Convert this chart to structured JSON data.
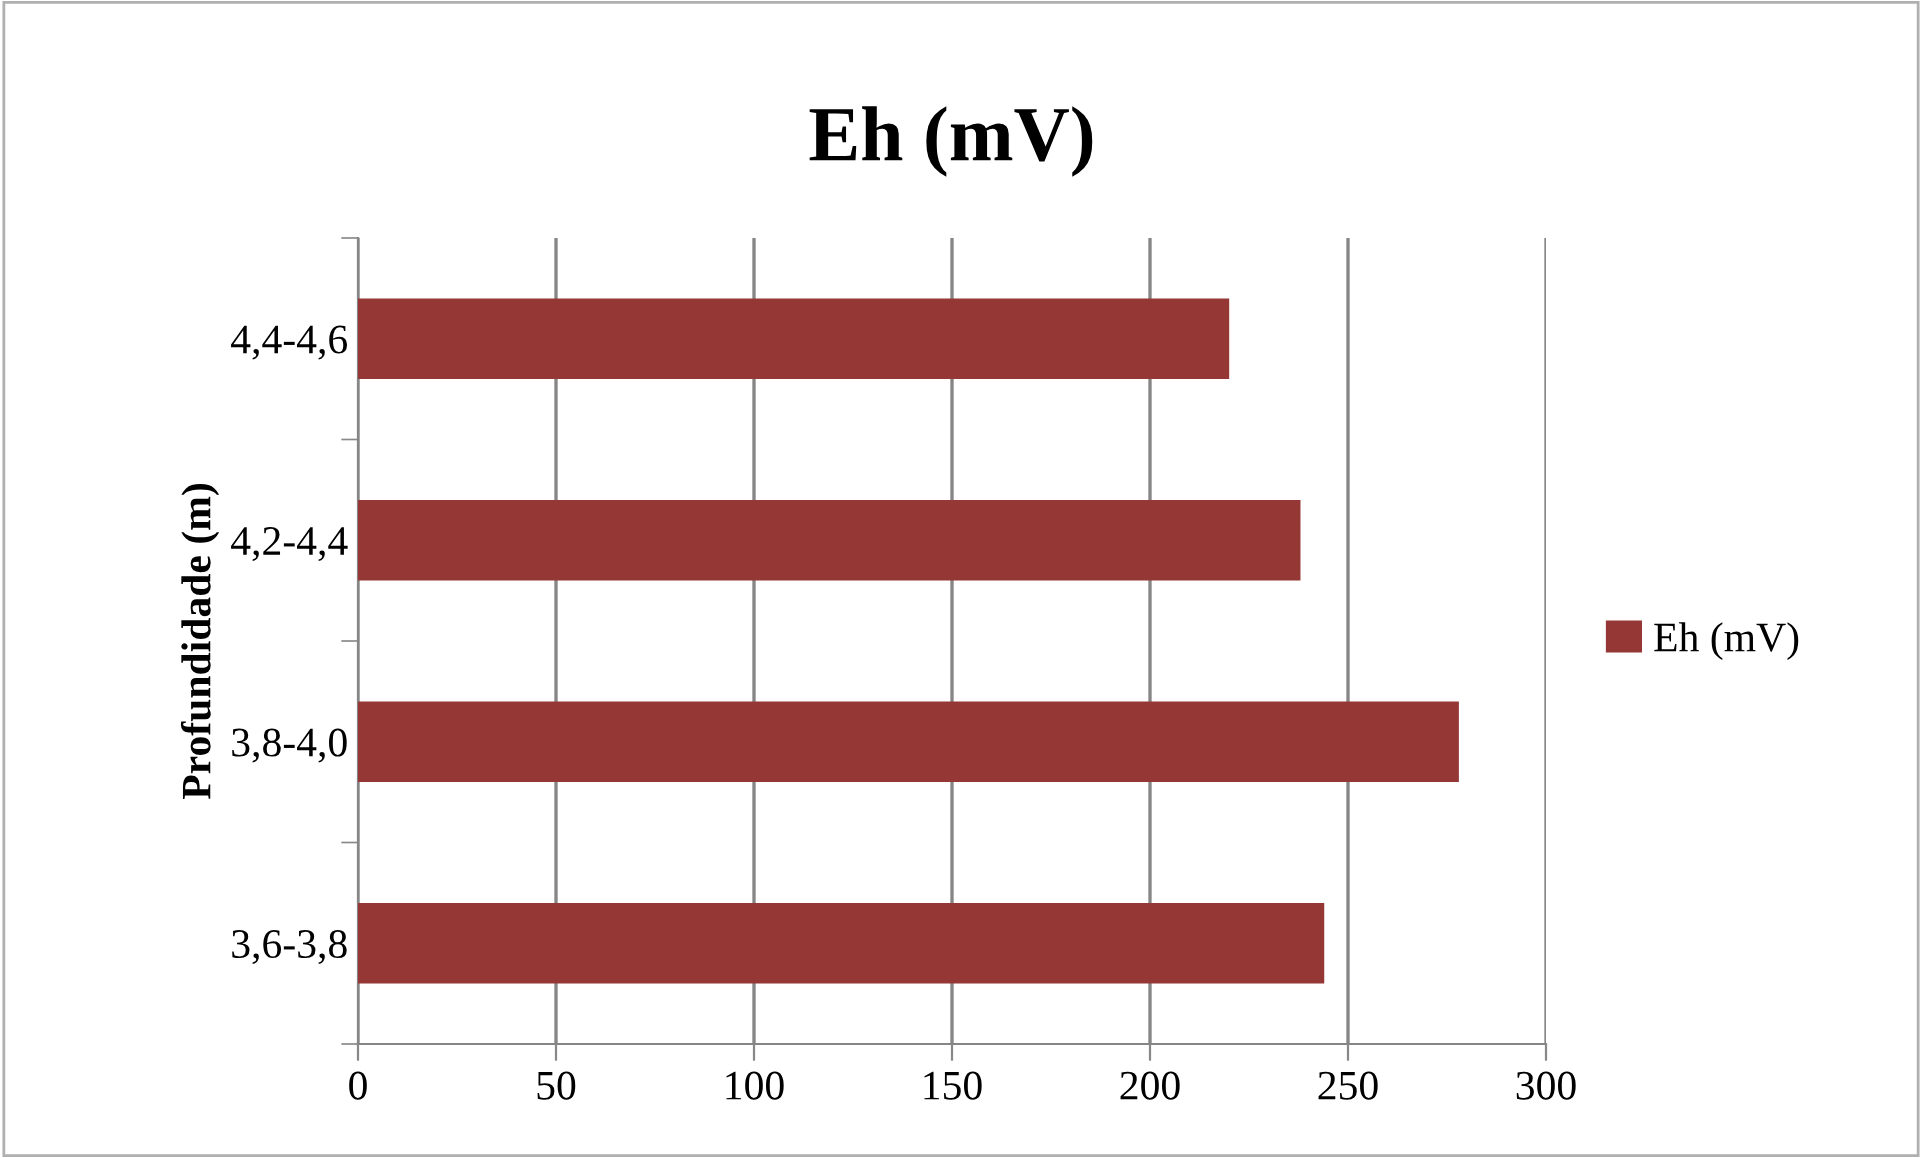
{
  "chart_data": {
    "type": "bar",
    "orientation": "horizontal",
    "title": "Eh (mV)",
    "ylabel": "Profundidade (m)",
    "categories": [
      "4,4-4,6",
      "4,2-4,4",
      "3,8-4,0",
      "3,6-3,8"
    ],
    "series": [
      {
        "name": "Eh (mV)",
        "color": "#953735",
        "values": [
          220,
          238,
          278,
          244
        ]
      }
    ],
    "xlim": [
      0,
      300
    ],
    "xticks": [
      0,
      50,
      100,
      150,
      200,
      250,
      300
    ],
    "grid": "x",
    "legend": "right"
  }
}
